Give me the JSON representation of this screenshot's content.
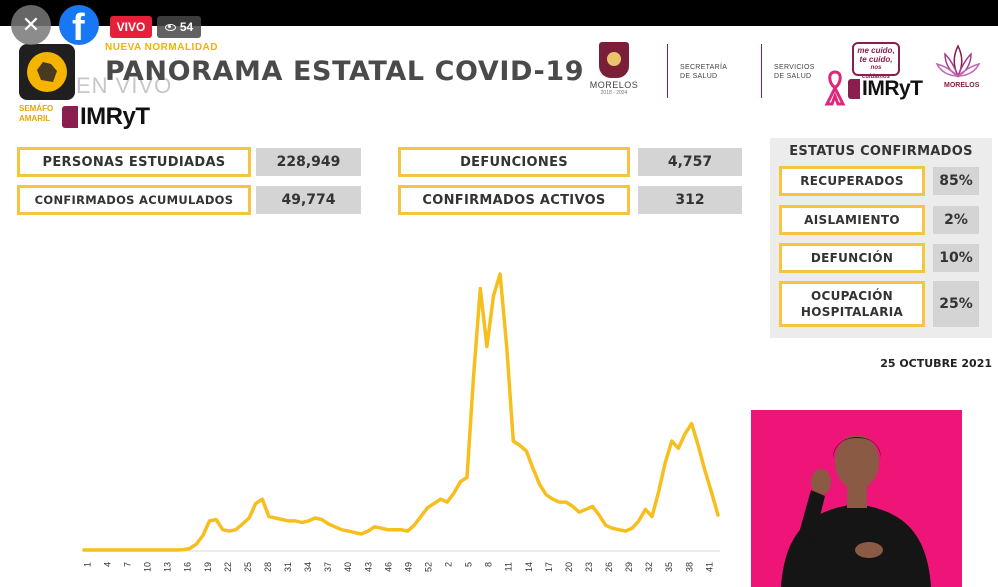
{
  "overlay": {
    "live_label": "VIVO",
    "viewer_count": "54",
    "close_icon": "close-icon",
    "facebook_icon": "facebook-logo-icon",
    "eye_icon": "eye-icon"
  },
  "header": {
    "semaforo_label_line1": "SEMÁFO",
    "semaforo_label_line2": "AMARIL",
    "watermark": "EN VIVO",
    "imryt_logo": "IMRyT",
    "subtitle": "NUEVA NORMALIDAD",
    "title": "PANORAMA ESTATAL COVID-19",
    "morelos_name": "MORELOS",
    "morelos_years": "2018 - 2024",
    "secretaria_line1": "SECRETARÍA",
    "secretaria_line2": "DE SALUD",
    "servicios_line1": "SERVICIOS",
    "servicios_line2": "DE SALUD",
    "mecuido_line1": "me cuido,",
    "mecuido_line2": "te cuido,",
    "mecuido_line3": "nos cuidamos",
    "morelos_small": "MORELOS",
    "accent_color": "#f5c542",
    "brand_color": "#8a1e4f"
  },
  "stats": {
    "personas_label": "PERSONAS ESTUDIADAS",
    "personas_value": "228,949",
    "confirmados_label": "CONFIRMADOS ACUMULADOS",
    "confirmados_value": "49,774",
    "defunciones_label": "DEFUNCIONES",
    "defunciones_value": "4,757",
    "activos_label": "CONFIRMADOS ACTIVOS",
    "activos_value": "312"
  },
  "status": {
    "title": "ESTATUS CONFIRMADOS",
    "items": [
      {
        "label": "RECUPERADOS",
        "value": "85%"
      },
      {
        "label": "AISLAMIENTO",
        "value": "2%"
      },
      {
        "label": "DEFUNCIÓN",
        "value": "10%"
      },
      {
        "label": "OCUPACIÓN HOSPITALARIA",
        "value": "25%"
      }
    ]
  },
  "date": "25 OCTUBRE 2021",
  "chart_data": {
    "type": "line",
    "title": "",
    "xlabel": "",
    "ylabel": "",
    "line_color": "#f7bf1e",
    "x_ticks": [
      "1",
      "4",
      "7",
      "10",
      "13",
      "16",
      "19",
      "22",
      "25",
      "28",
      "31",
      "34",
      "37",
      "40",
      "43",
      "46",
      "49",
      "52",
      "2",
      "5",
      "8",
      "11",
      "14",
      "17",
      "20",
      "23",
      "26",
      "29",
      "32",
      "35",
      "38",
      "41"
    ],
    "values": [
      0,
      0,
      0,
      0,
      0,
      0,
      0,
      0,
      0,
      0,
      0,
      0,
      0,
      0,
      0,
      0.2,
      1,
      4,
      10,
      20,
      21,
      14,
      13,
      14,
      18,
      22,
      32,
      35,
      23,
      22,
      21,
      20,
      20,
      19,
      20,
      22,
      21,
      18,
      16,
      14,
      13,
      12,
      11,
      13,
      16,
      15,
      14,
      14,
      14,
      13,
      17,
      23,
      29,
      32,
      35,
      33,
      39,
      47,
      50,
      120,
      180,
      140,
      175,
      190,
      140,
      75,
      72,
      68,
      56,
      45,
      38,
      35,
      33,
      33,
      30,
      26,
      28,
      30,
      24,
      17,
      15,
      14,
      13,
      15,
      20,
      28,
      23,
      40,
      60,
      75,
      70,
      80,
      87,
      72,
      55,
      40,
      24
    ],
    "grid": false,
    "legend": "none"
  },
  "interpreter": {
    "background_color": "#ef1477"
  }
}
